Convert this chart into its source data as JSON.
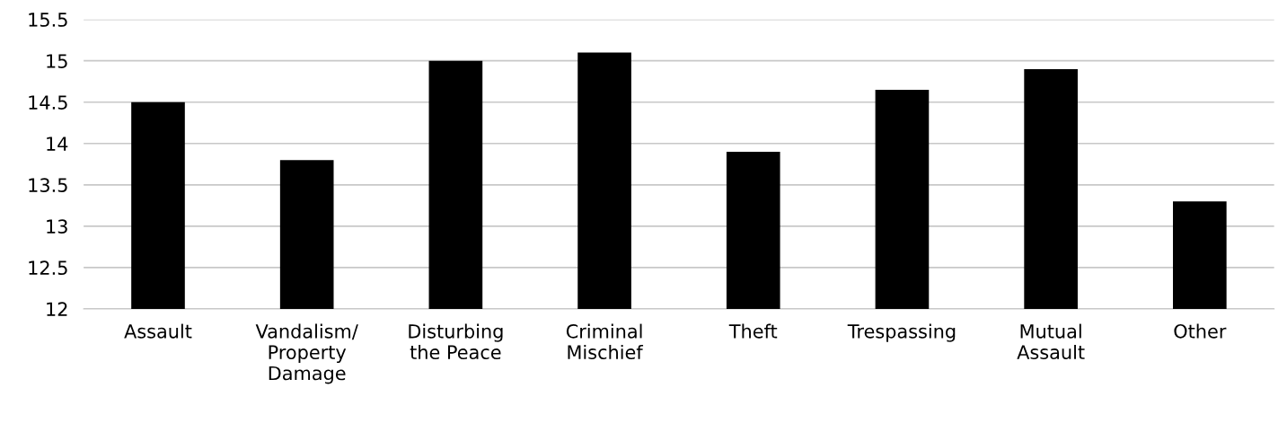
{
  "chart_data": {
    "type": "bar",
    "categories": [
      "Assault",
      "Vandalism/\nProperty\nDamage",
      "Disturbing\nthe Peace",
      "Criminal\nMischief",
      "Theft",
      "Trespassing",
      "Mutual\nAssault",
      "Other"
    ],
    "values": [
      14.5,
      13.8,
      15.0,
      15.1,
      13.9,
      14.65,
      14.9,
      13.3
    ],
    "color": "#000000",
    "ylim": [
      12,
      15.5
    ],
    "yticks": [
      12,
      12.5,
      13,
      13.5,
      14,
      14.5,
      15,
      15.5
    ],
    "grid": "y"
  }
}
